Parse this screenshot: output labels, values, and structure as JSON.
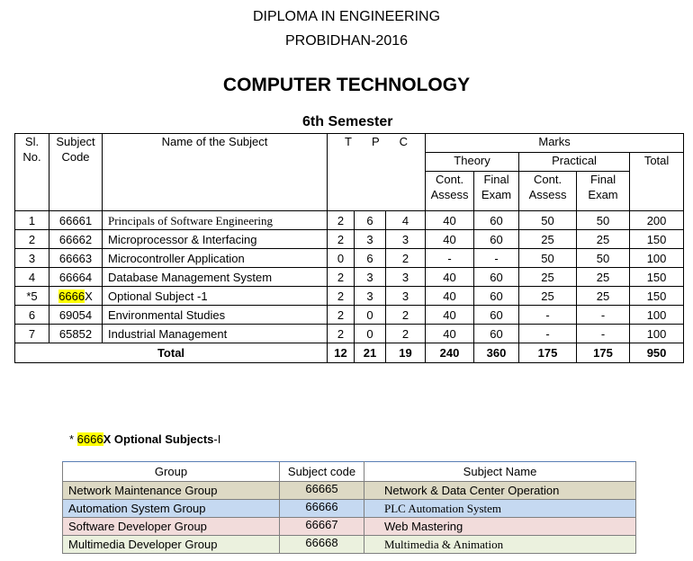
{
  "header": {
    "line1": "DIPLOMA IN ENGINEERING",
    "line2": "PROBIDHAN-2016",
    "department": "COMPUTER TECHNOLOGY",
    "semester": "6th Semester"
  },
  "main_table": {
    "headers": {
      "sl_a": "Sl.",
      "sl_b": "No.",
      "code_a": "Subject",
      "code_b": "Code",
      "name": "Name of the Subject",
      "t": "T",
      "p": "P",
      "c": "C",
      "marks": "Marks",
      "theory": "Theory",
      "practical": "Practical",
      "total": "Total",
      "cont_a": "Cont.",
      "cont_b": "Assess",
      "final_a": "Final",
      "final_b": "Exam"
    },
    "rows": [
      {
        "sl": "1",
        "code": "66661",
        "code_tail": "",
        "name": "Principals of Software Engineering",
        "t": "2",
        "p": "6",
        "c": "4",
        "tc": "40",
        "tf": "60",
        "pc": "50",
        "pf": "50",
        "total": "200"
      },
      {
        "sl": "2",
        "code": "66662",
        "code_tail": "",
        "name": "Microprocessor & Interfacing",
        "t": "2",
        "p": "3",
        "c": "3",
        "tc": "40",
        "tf": "60",
        "pc": "25",
        "pf": "25",
        "total": "150"
      },
      {
        "sl": "3",
        "code": "66663",
        "code_tail": "",
        "name": "Microcontroller Application",
        "t": "0",
        "p": "6",
        "c": "2",
        "tc": "-",
        "tf": "-",
        "pc": "50",
        "pf": "50",
        "total": "100"
      },
      {
        "sl": "4",
        "code": "66664",
        "code_tail": "",
        "name": "Database Management System",
        "t": "2",
        "p": "3",
        "c": "3",
        "tc": "40",
        "tf": "60",
        "pc": "25",
        "pf": "25",
        "total": "150"
      },
      {
        "sl": "*5",
        "code": "6666",
        "code_tail": "X",
        "name": "Optional Subject -1",
        "t": "2",
        "p": "3",
        "c": "3",
        "tc": "40",
        "tf": "60",
        "pc": "25",
        "pf": "25",
        "total": "150"
      },
      {
        "sl": "6",
        "code": "69054",
        "code_tail": "",
        "name": "Environmental Studies",
        "t": "2",
        "p": "0",
        "c": "2",
        "tc": "40",
        "tf": "60",
        "pc": "-",
        "pf": "-",
        "total": "100"
      },
      {
        "sl": "7",
        "code": "65852",
        "code_tail": "",
        "name": "Industrial Management",
        "t": "2",
        "p": "0",
        "c": "2",
        "tc": "40",
        "tf": "60",
        "pc": "-",
        "pf": "-",
        "total": "100"
      }
    ],
    "totals": {
      "label": "Total",
      "t": "12",
      "p": "21",
      "c": "19",
      "tc": "240",
      "tf": "360",
      "pc": "175",
      "pf": "175",
      "total": "950"
    }
  },
  "note": {
    "star": "* ",
    "code": "6666",
    "tail": "X",
    "label": "Optional Subjects",
    "suffix": "-I"
  },
  "optional_table": {
    "headers": {
      "group": "Group",
      "code": "Subject code",
      "name": "Subject Name"
    },
    "rows": [
      {
        "group": "Network Maintenance Group",
        "code": "66665",
        "name": "Network & Data Center Operation",
        "color": "#ddd9c4"
      },
      {
        "group": "Automation System Group",
        "code": "66666",
        "name": "PLC Automation System",
        "color": "#c5d9f1"
      },
      {
        "group": "Software Developer Group",
        "code": "66667",
        "name": "Web Mastering",
        "color": "#f2dcdb"
      },
      {
        "group": "Multimedia Developer Group",
        "code": "66668",
        "name": "Multimedia & Animation",
        "color": "#ebf1de"
      }
    ]
  }
}
